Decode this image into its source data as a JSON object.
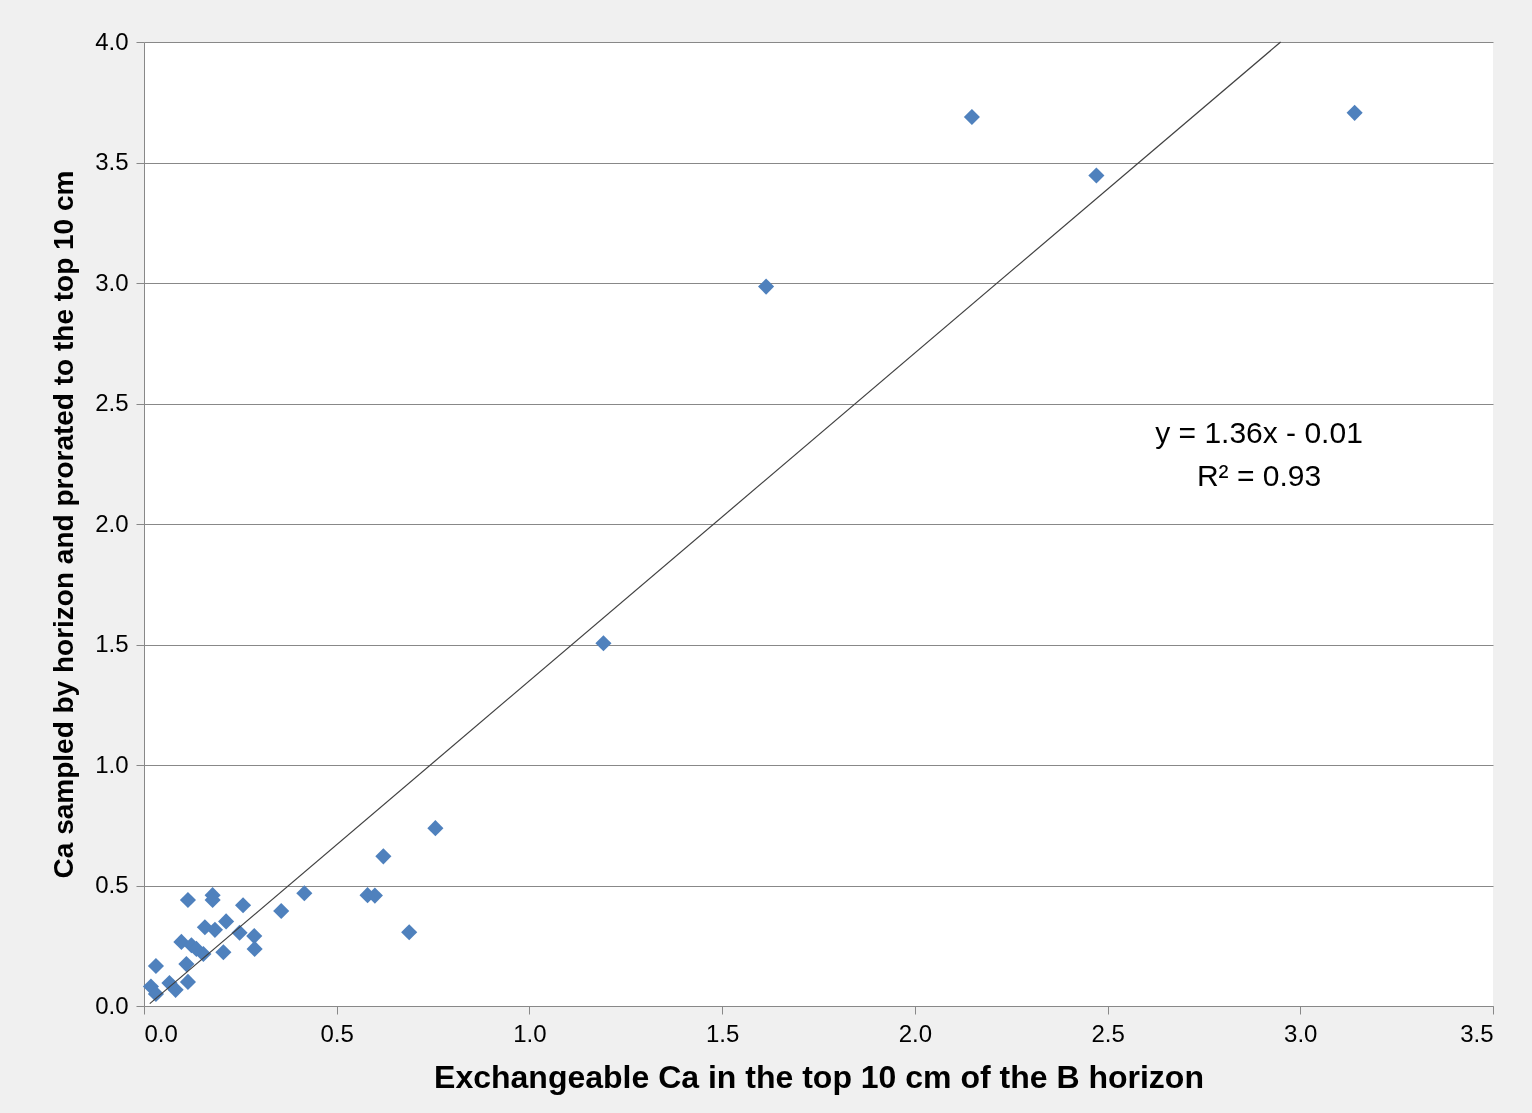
{
  "chart_data": {
    "type": "scatter",
    "xlabel": "Exchangeable Ca in the top 10 cm of the B horizon",
    "ylabel": "Ca sampled by horizon and prorated to the top 10 cm",
    "xlim": [
      0,
      3.5
    ],
    "xticks": [
      {
        "value": 0,
        "label": "0.0"
      },
      0.5,
      {
        "value": 1,
        "label": "1.0"
      },
      1.5,
      {
        "value": 2,
        "label": "2.0"
      },
      2.5,
      {
        "value": 3,
        "label": "3.0"
      },
      3.5
    ],
    "ylim": [
      0,
      4
    ],
    "yticks": [
      {
        "value": 0,
        "label": "0.0"
      },
      0.5,
      {
        "value": 1,
        "label": "1.0"
      },
      1.5,
      {
        "value": 2,
        "label": "2.0"
      },
      2.5,
      {
        "value": 3,
        "label": "3.0"
      },
      3.5,
      {
        "value": 4,
        "label": "4.0"
      }
    ],
    "grid": "y",
    "series": [
      {
        "type": "scatter",
        "marker": "diamond",
        "color": "#4f81bd",
        "x": [
          0.018,
          0.031,
          0.031,
          0.066,
          0.082,
          0.114,
          0.11,
          0.097,
          0.123,
          0.154,
          0.114,
          0.158,
          0.178,
          0.178,
          0.184,
          0.213,
          0.206,
          0.257,
          0.248,
          0.286,
          0.287,
          0.356,
          0.416,
          0.58,
          0.599,
          0.621,
          0.756,
          0.688,
          0.136,
          1.192,
          1.614,
          2.148,
          2.471,
          3.141
        ],
        "values": [
          0.081,
          0.05,
          0.166,
          0.095,
          0.067,
          0.1,
          0.174,
          0.266,
          0.252,
          0.216,
          0.44,
          0.327,
          0.46,
          0.44,
          0.316,
          0.351,
          0.223,
          0.418,
          0.304,
          0.29,
          0.237,
          0.394,
          0.468,
          0.46,
          0.458,
          0.621,
          0.738,
          0.306,
          0.237,
          1.505,
          2.985,
          3.689,
          3.446,
          3.706
        ]
      },
      {
        "type": "line",
        "line_style": "solid",
        "color": "#404040",
        "x": [
          0.015,
          2.949
        ],
        "values": [
          0.01,
          4.0
        ]
      }
    ],
    "annotations": [
      "y = 1.36x - 0.01",
      "R² = 0.93"
    ]
  }
}
